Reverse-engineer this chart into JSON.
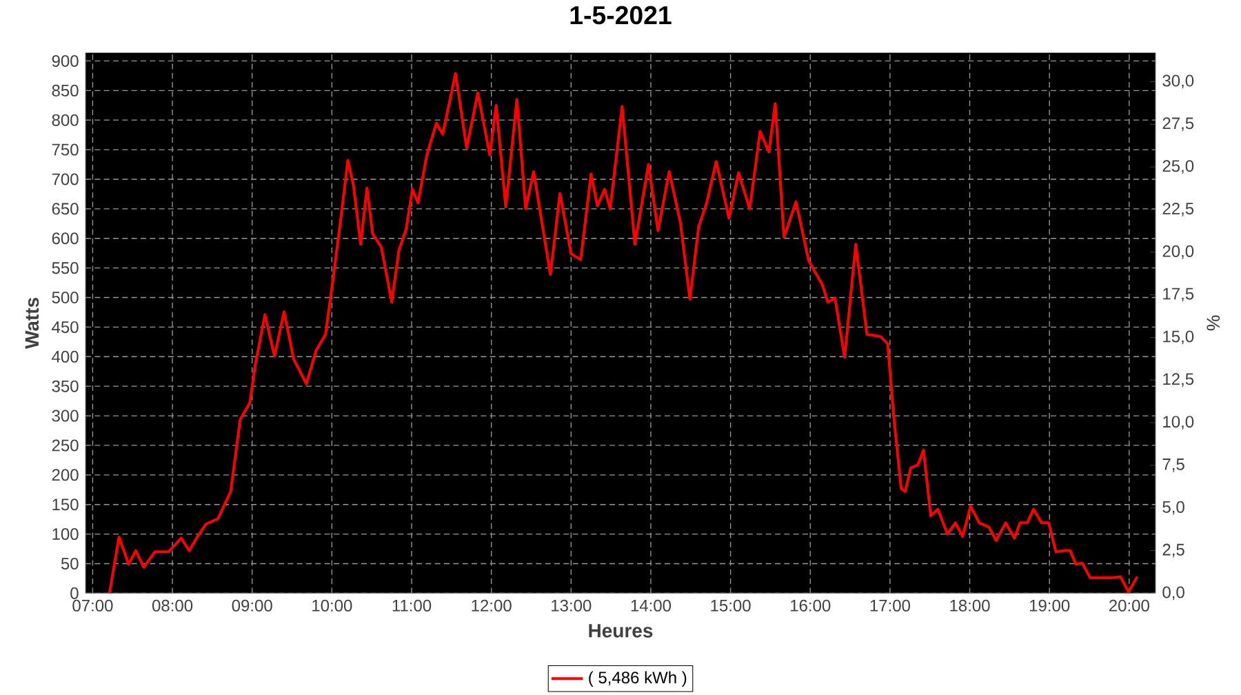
{
  "chart_data": {
    "type": "line",
    "title": "1-5-2021",
    "xlabel": "Heures",
    "ylabel": "Watts",
    "y2label": "%",
    "xlim": [
      6.91,
      20.33
    ],
    "xticks": [
      {
        "value": 7,
        "label": "07:00"
      },
      {
        "value": 8,
        "label": "08:00"
      },
      {
        "value": 9,
        "label": "09:00"
      },
      {
        "value": 10,
        "label": "10:00"
      },
      {
        "value": 11,
        "label": "11:00"
      },
      {
        "value": 12,
        "label": "12:00"
      },
      {
        "value": 13,
        "label": "13:00"
      },
      {
        "value": 14,
        "label": "14:00"
      },
      {
        "value": 15,
        "label": "15:00"
      },
      {
        "value": 16,
        "label": "16:00"
      },
      {
        "value": 17,
        "label": "17:00"
      },
      {
        "value": 18,
        "label": "18:00"
      },
      {
        "value": 19,
        "label": "19:00"
      },
      {
        "value": 20,
        "label": "20:00"
      }
    ],
    "ylim": [
      0,
      914
    ],
    "yticks": [
      0,
      50,
      100,
      150,
      200,
      250,
      300,
      350,
      400,
      450,
      500,
      550,
      600,
      650,
      700,
      750,
      800,
      850,
      900
    ],
    "y2lim": [
      0,
      31.7
    ],
    "y2ticks": [
      {
        "value": 0,
        "label": "0,0"
      },
      {
        "value": 2.5,
        "label": "2,5"
      },
      {
        "value": 5,
        "label": "5,0"
      },
      {
        "value": 7.5,
        "label": "7,5"
      },
      {
        "value": 10,
        "label": "10,0"
      },
      {
        "value": 12.5,
        "label": "12,5"
      },
      {
        "value": 15,
        "label": "15,0"
      },
      {
        "value": 17.5,
        "label": "17,5"
      },
      {
        "value": 20,
        "label": "20,0"
      },
      {
        "value": 22.5,
        "label": "22,5"
      },
      {
        "value": 25,
        "label": "25,0"
      },
      {
        "value": 27.5,
        "label": "27,5"
      },
      {
        "value": 30,
        "label": "30,0"
      }
    ],
    "grid": true,
    "legend": "bottom",
    "line_style": "solid",
    "series": [
      {
        "name": "( 5,486 kWh )",
        "color": "#ff0000",
        "x": [
          7.21,
          7.33,
          7.45,
          7.54,
          7.64,
          7.78,
          7.95,
          8.11,
          8.21,
          8.31,
          8.42,
          8.57,
          8.73,
          8.85,
          8.97,
          9.04,
          9.16,
          9.28,
          9.4,
          9.52,
          9.68,
          9.8,
          9.92,
          10.01,
          10.11,
          10.2,
          10.27,
          10.36,
          10.44,
          10.51,
          10.62,
          10.75,
          10.84,
          10.93,
          11.01,
          11.08,
          11.19,
          11.31,
          11.39,
          11.55,
          11.69,
          11.83,
          11.98,
          12.06,
          12.18,
          12.32,
          12.43,
          12.53,
          12.74,
          12.86,
          13.0,
          13.12,
          13.25,
          13.33,
          13.42,
          13.49,
          13.64,
          13.8,
          13.97,
          14.09,
          14.23,
          14.37,
          14.49,
          14.6,
          14.7,
          14.82,
          14.98,
          15.1,
          15.24,
          15.37,
          15.48,
          15.56,
          15.67,
          15.82,
          15.98,
          16.15,
          16.22,
          16.31,
          16.43,
          16.57,
          16.71,
          16.88,
          16.97,
          17.05,
          17.14,
          17.19,
          17.26,
          17.35,
          17.42,
          17.51,
          17.6,
          17.72,
          17.82,
          17.91,
          18.01,
          18.12,
          18.24,
          18.33,
          18.45,
          18.56,
          18.63,
          18.72,
          18.8,
          18.9,
          18.99,
          19.08,
          19.18,
          19.26,
          19.33,
          19.41,
          19.51,
          19.77,
          19.89,
          19.99,
          20.1
        ],
        "values": [
          0,
          95,
          49,
          72,
          44,
          70,
          70,
          93,
          72,
          95,
          117,
          126,
          172,
          294,
          322,
          387,
          471,
          401,
          476,
          396,
          354,
          410,
          438,
          527,
          632,
          732,
          690,
          590,
          685,
          608,
          585,
          492,
          580,
          615,
          683,
          660,
          741,
          795,
          776,
          879,
          753,
          846,
          741,
          825,
          653,
          835,
          650,
          713,
          539,
          676,
          574,
          564,
          709,
          655,
          683,
          650,
          823,
          590,
          725,
          613,
          713,
          627,
          497,
          620,
          660,
          730,
          634,
          711,
          650,
          781,
          746,
          828,
          602,
          662,
          562,
          522,
          492,
          499,
          399,
          590,
          438,
          434,
          422,
          294,
          177,
          172,
          212,
          217,
          242,
          131,
          142,
          100,
          119,
          96,
          147,
          119,
          112,
          89,
          119,
          93,
          119,
          119,
          142,
          119,
          119,
          70,
          72,
          72,
          49,
          51,
          26,
          26,
          28,
          2,
          28
        ]
      }
    ]
  }
}
